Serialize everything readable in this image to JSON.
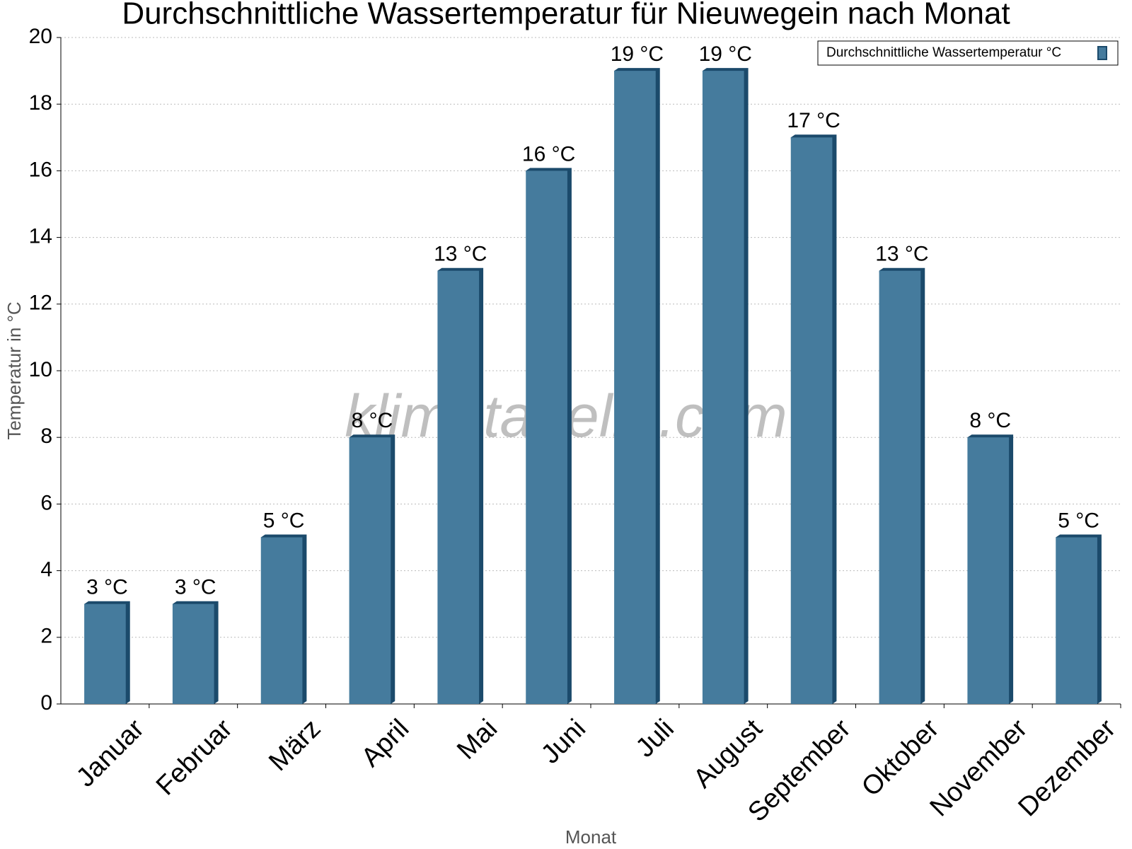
{
  "chart_data": {
    "type": "bar",
    "title": "Durchschnittliche Wassertemperatur für Nieuwegein nach Monat",
    "x_label": "Monat",
    "y_label": "Temperatur in °C",
    "watermark": "klimatabelle.com",
    "categories": [
      "Januar",
      "Februar",
      "März",
      "April",
      "Mai",
      "Juni",
      "Juli",
      "August",
      "September",
      "Oktober",
      "November",
      "Dezember"
    ],
    "series": [
      {
        "name": "Durchschnittliche Wassertemperatur °C",
        "color": "#457b9d",
        "values": [
          3,
          3,
          5,
          8,
          13,
          16,
          19,
          19,
          17,
          13,
          8,
          5
        ],
        "value_labels": [
          "3 °C",
          "3 °C",
          "5 °C",
          "8 °C",
          "13 °C",
          "16 °C",
          "19 °C",
          "19 °C",
          "17 °C",
          "13 °C",
          "8 °C",
          "5 °C"
        ]
      }
    ],
    "ylim": [
      0,
      20
    ],
    "yticks": [
      0,
      2,
      4,
      6,
      8,
      10,
      12,
      14,
      16,
      18,
      20
    ],
    "grid": true,
    "legend": "top-right"
  }
}
